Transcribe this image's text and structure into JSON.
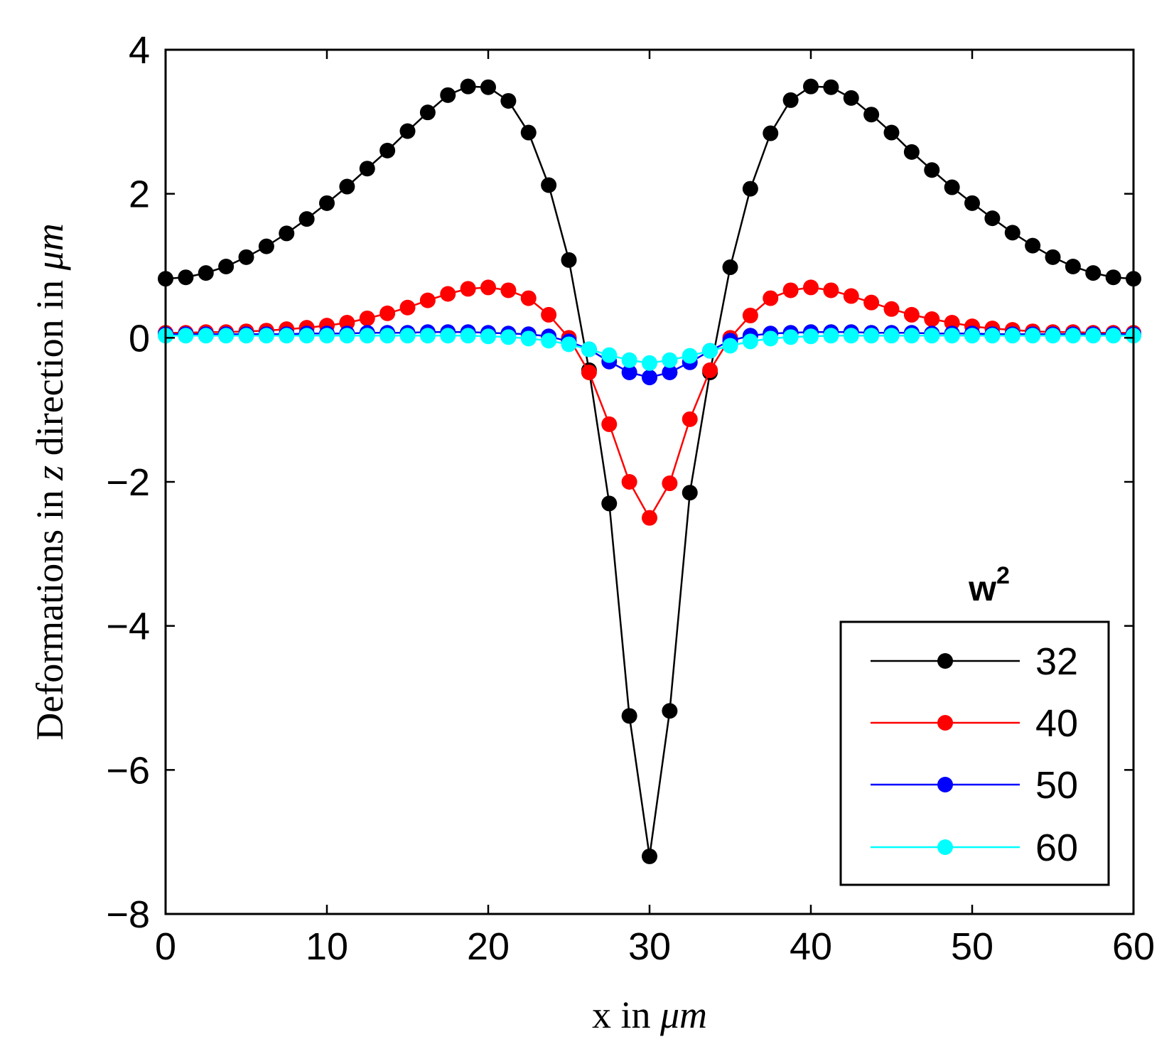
{
  "chart_data": {
    "type": "line",
    "title": "",
    "xlabel": {
      "prefix": "x in ",
      "unit": "μm"
    },
    "ylabel": {
      "prefix": "Deformations in ",
      "var": "z",
      "mid": " direction in ",
      "unit": "μm"
    },
    "xlim": [
      0,
      60
    ],
    "ylim": [
      -8,
      4
    ],
    "xticks": [
      0,
      10,
      20,
      30,
      40,
      50,
      60
    ],
    "yticks": [
      -8,
      -6,
      -4,
      -2,
      0,
      2,
      4
    ],
    "xtick_labels": [
      "0",
      "10",
      "20",
      "30",
      "40",
      "50",
      "60"
    ],
    "ytick_labels": [
      "−8",
      "−6",
      "−4",
      "−2",
      "0",
      "2",
      "4"
    ],
    "grid": false,
    "legend": {
      "position": "bottom-right",
      "title_base": "w",
      "title_sup": "2"
    },
    "x": [
      0,
      1.25,
      2.5,
      3.75,
      5,
      6.25,
      7.5,
      8.75,
      10,
      11.25,
      12.5,
      13.75,
      15,
      16.25,
      17.5,
      18.75,
      20,
      21.25,
      22.5,
      23.75,
      25,
      26.25,
      27.5,
      28.75,
      30,
      31.25,
      32.5,
      33.75,
      35,
      36.25,
      37.5,
      38.75,
      40,
      41.25,
      42.5,
      43.75,
      45,
      46.25,
      47.5,
      48.75,
      50,
      51.25,
      52.5,
      53.75,
      55,
      56.25,
      57.5,
      58.75,
      60
    ],
    "series": [
      {
        "name": "32",
        "color": "#000000",
        "values": [
          0.82,
          0.84,
          0.9,
          0.99,
          1.12,
          1.27,
          1.45,
          1.65,
          1.87,
          2.1,
          2.35,
          2.6,
          2.87,
          3.13,
          3.37,
          3.49,
          3.48,
          3.29,
          2.85,
          2.12,
          1.08,
          -0.45,
          -2.3,
          -5.25,
          -7.2,
          -5.18,
          -2.15,
          -0.48,
          0.98,
          2.07,
          2.84,
          3.3,
          3.49,
          3.48,
          3.33,
          3.1,
          2.85,
          2.58,
          2.33,
          2.09,
          1.87,
          1.66,
          1.46,
          1.28,
          1.12,
          0.99,
          0.9,
          0.84,
          0.82
        ]
      },
      {
        "name": "40",
        "color": "#ff0000",
        "values": [
          0.07,
          0.07,
          0.08,
          0.08,
          0.09,
          0.1,
          0.12,
          0.14,
          0.17,
          0.21,
          0.27,
          0.34,
          0.42,
          0.52,
          0.61,
          0.68,
          0.7,
          0.66,
          0.55,
          0.32,
          0.0,
          -0.48,
          -1.2,
          -2.0,
          -2.5,
          -2.02,
          -1.13,
          -0.45,
          0.0,
          0.31,
          0.55,
          0.66,
          0.7,
          0.66,
          0.58,
          0.49,
          0.4,
          0.32,
          0.26,
          0.21,
          0.16,
          0.13,
          0.11,
          0.09,
          0.08,
          0.08,
          0.07,
          0.07,
          0.07
        ]
      },
      {
        "name": "50",
        "color": "#0000ff",
        "values": [
          0.05,
          0.05,
          0.05,
          0.05,
          0.05,
          0.05,
          0.05,
          0.06,
          0.06,
          0.06,
          0.07,
          0.07,
          0.07,
          0.08,
          0.08,
          0.08,
          0.07,
          0.06,
          0.05,
          0.02,
          -0.05,
          -0.16,
          -0.33,
          -0.48,
          -0.55,
          -0.48,
          -0.34,
          -0.18,
          -0.04,
          0.03,
          0.06,
          0.07,
          0.08,
          0.08,
          0.08,
          0.07,
          0.07,
          0.07,
          0.06,
          0.06,
          0.06,
          0.05,
          0.05,
          0.05,
          0.05,
          0.05,
          0.05,
          0.05,
          0.05
        ]
      },
      {
        "name": "60",
        "color": "#00ffff",
        "values": [
          0.03,
          0.03,
          0.03,
          0.03,
          0.03,
          0.03,
          0.03,
          0.03,
          0.03,
          0.03,
          0.03,
          0.03,
          0.03,
          0.03,
          0.03,
          0.03,
          0.02,
          0.01,
          -0.01,
          -0.04,
          -0.09,
          -0.16,
          -0.24,
          -0.31,
          -0.35,
          -0.31,
          -0.25,
          -0.18,
          -0.11,
          -0.05,
          -0.01,
          0.01,
          0.02,
          0.03,
          0.03,
          0.03,
          0.03,
          0.03,
          0.03,
          0.03,
          0.03,
          0.03,
          0.03,
          0.03,
          0.03,
          0.03,
          0.03,
          0.03,
          0.03
        ]
      }
    ]
  }
}
